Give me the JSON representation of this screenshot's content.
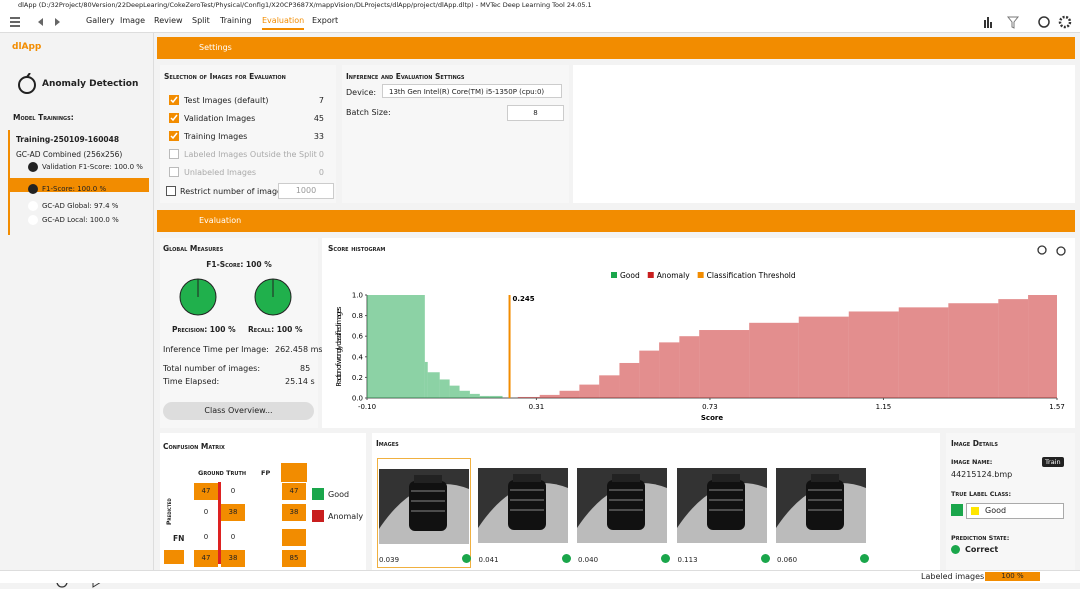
{
  "window": {
    "title": "dlApp (D:/32Project/80Version/22DeepLearing/CokeZeroTest/Physical/Config1/X20CP3687X/mappVision/DLProjects/dlApp/project/dlApp.dltp) - MVTec Deep Learning Tool 24.05.1"
  },
  "menu": {
    "tabs": [
      "Gallery",
      "Image",
      "Review",
      "Split",
      "Training",
      "Evaluation",
      "Export"
    ]
  },
  "sidebar": {
    "app": "dlApp",
    "method": "Anomaly Detection",
    "section": "Model Trainings:",
    "training": {
      "name": "Training-250109-160048",
      "model": "GC-AD Combined (256x256)",
      "items": [
        "Validation F1-Score: 100.0 %",
        "F1-Score: 100.0 %",
        "GC-AD Global: 97.4 %",
        "GC-AD Local: 100.0 %"
      ]
    }
  },
  "settings": {
    "header": "Settings",
    "selection": {
      "title": "Selection of Images for Evaluation",
      "rows": [
        {
          "label": "Test Images (default)",
          "count": 7,
          "checked": true
        },
        {
          "label": "Validation Images",
          "count": 45,
          "checked": true
        },
        {
          "label": "Training Images",
          "count": 33,
          "checked": true
        },
        {
          "label": "Labeled Images Outside the Split",
          "count": 0,
          "checked": false
        },
        {
          "label": "Unlabeled Images",
          "count": 0,
          "checked": false
        }
      ],
      "restrict_label": "Restrict number of images:",
      "restrict_value": 1000
    },
    "inference": {
      "title": "Inference and Evaluation Settings",
      "device_label": "Device:",
      "device": "13th Gen Intel(R) Core(TM) i5-1350P (cpu:0)",
      "batch_label": "Batch Size:",
      "batch": 8
    }
  },
  "evaluation": {
    "header": "Evaluation",
    "global": {
      "title": "Global Measures",
      "f1": "F1-Score: 100 %",
      "precision": "Precision: 100 %",
      "recall": "Recall: 100 %",
      "inference_label": "Inference Time per Image:",
      "inference_value": "262.458 ms",
      "total_label": "Total number of images:",
      "total_value": 85,
      "elapsed_label": "Time Elapsed:",
      "elapsed_value": "25.14 s",
      "button": "Class Overview..."
    },
    "histogram": {
      "title": "Score histogram",
      "ylabel": "Fraction of wrongly classified images",
      "xlabel": "Score",
      "threshold_name": "Classification Threshold",
      "threshold_color": "#f28c00",
      "threshold": 0.245,
      "xlim": [
        -0.1,
        1.57
      ],
      "ylim": [
        0,
        1
      ],
      "xticks": [
        {
          "value": -0.1,
          "label": "-0.10"
        },
        0.31,
        0.73,
        1.15,
        1.57
      ],
      "yticks": [
        {
          "value": 0,
          "label": "0.0"
        },
        0.2,
        0.4,
        0.6,
        0.8,
        {
          "value": 1,
          "label": "1.0"
        }
      ],
      "series": [
        {
          "name": "Good",
          "color": "#1aa64b",
          "bins": [
            -0.1,
            0.04,
            0.047,
            0.076,
            0.1,
            0.124,
            0.149,
            0.173,
            0.197,
            0.228
          ],
          "values": [
            1,
            0.35,
            0.25,
            0.18,
            0.12,
            0.07,
            0.04,
            0.02,
            0.02
          ]
        },
        {
          "name": "Anomaly",
          "color": "#c81e1e",
          "bins": [
            0.265,
            0.318,
            0.366,
            0.414,
            0.462,
            0.511,
            0.559,
            0.607,
            0.656,
            0.704,
            0.825,
            0.945,
            1.066,
            1.187,
            1.307,
            1.428,
            1.5,
            1.57
          ],
          "values": [
            0.01,
            0.03,
            0.07,
            0.13,
            0.22,
            0.34,
            0.46,
            0.54,
            0.6,
            0.66,
            0.73,
            0.79,
            0.84,
            0.88,
            0.92,
            0.96,
            1
          ]
        }
      ]
    }
  },
  "confusion": {
    "title": "Confusion Matrix",
    "ground_truth": "Ground Truth",
    "fp": "FP",
    "predicted": "Predicted",
    "fn": "FN",
    "rows": [
      [
        47,
        0,
        47
      ],
      [
        0,
        38,
        38
      ]
    ],
    "fn_row": [
      0,
      0
    ],
    "totals": [
      47,
      38,
      85
    ],
    "legend": [
      "Good",
      "Anomaly"
    ]
  },
  "images": {
    "title": "Images",
    "scores": [
      "0.039",
      "0.041",
      "0.040",
      "0.113",
      "0.060"
    ]
  },
  "details": {
    "title": "Image Details",
    "name_label": "Image Name:",
    "name": "44215124.bmp",
    "tag": "Train",
    "class_label": "True Label Class:",
    "class": "Good",
    "state_label": "Prediction State:",
    "state": "Correct"
  },
  "status": {
    "label": "Labeled images:",
    "value": "100 %"
  }
}
